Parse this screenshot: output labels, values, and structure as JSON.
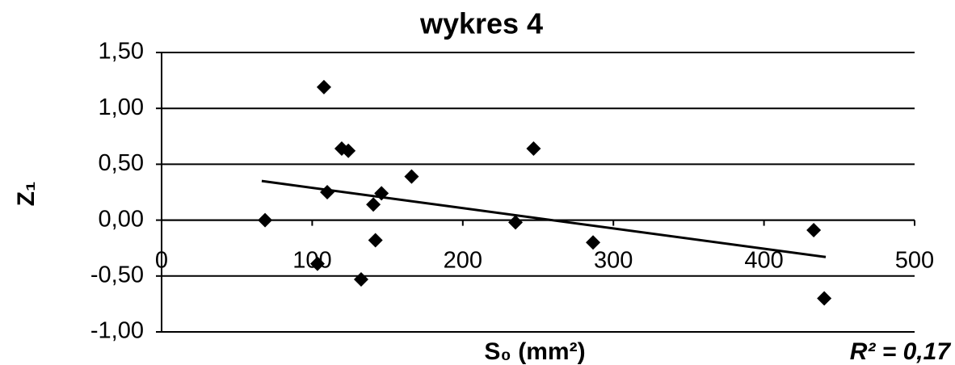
{
  "chart_data": {
    "type": "scatter",
    "title": "wykres 4",
    "x_label": "S₀ (mm²)",
    "y_label": "Z₁",
    "annotation": "R² = 0,17",
    "color": "#000000",
    "grid": true,
    "xlim": [
      0,
      500
    ],
    "xticks": [
      0,
      100,
      200,
      300,
      400,
      500
    ],
    "ylim": [
      -1.0,
      1.5
    ],
    "yticks": [
      {
        "value": -1.0,
        "label": "-1,00"
      },
      {
        "value": -0.5,
        "label": "-0,50"
      },
      {
        "value": 0,
        "label": "0,00"
      },
      {
        "value": 0.5,
        "label": "0,50"
      },
      {
        "value": 1.0,
        "label": "1,00"
      },
      {
        "value": 1.5,
        "label": "1,50"
      }
    ],
    "x": [
      68.7,
      107.8,
      103.5,
      110,
      119.6,
      124,
      132.5,
      140.6,
      142,
      146,
      166,
      235,
      247,
      286.5,
      433,
      440
    ],
    "values": [
      0.0,
      1.19,
      -0.39,
      0.25,
      0.64,
      0.62,
      -0.53,
      0.14,
      -0.18,
      0.24,
      0.39,
      -0.02,
      0.64,
      -0.2,
      -0.09,
      -0.7
    ],
    "trendline": {
      "x": [
        66.5,
        441
      ],
      "values": [
        0.35,
        -0.33
      ]
    }
  }
}
